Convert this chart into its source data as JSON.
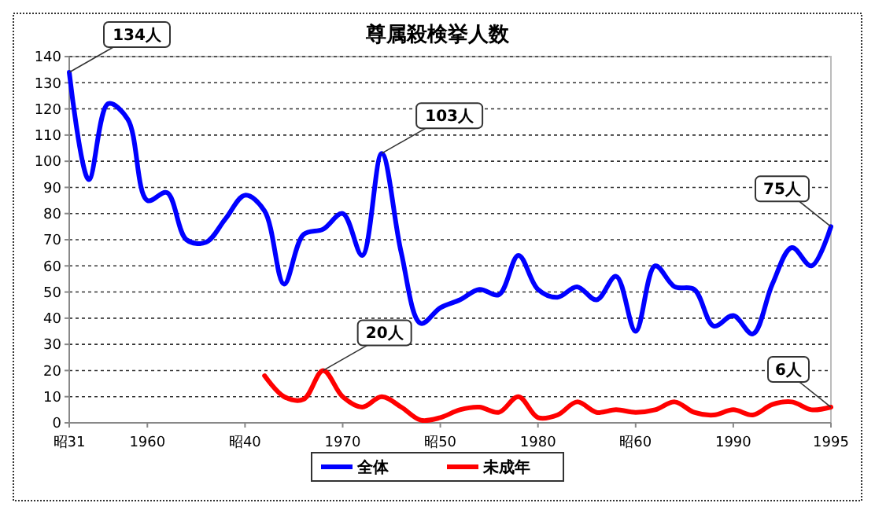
{
  "chart_data": {
    "type": "line",
    "title": "尊属殺検挙人数",
    "xlim": [
      1956,
      1995
    ],
    "xticks": [
      {
        "value": 1956,
        "label": "昭31"
      },
      1960,
      {
        "value": 1965,
        "label": "昭40"
      },
      1970,
      {
        "value": 1975,
        "label": "昭50"
      },
      1980,
      {
        "value": 1985,
        "label": "昭60"
      },
      1990,
      1995
    ],
    "ylim": [
      0,
      140
    ],
    "yticks": [
      0,
      10,
      20,
      30,
      40,
      50,
      60,
      70,
      80,
      90,
      100,
      110,
      120,
      130,
      140
    ],
    "grid": "y",
    "legend": "bottom",
    "line_style": "solid",
    "series": [
      {
        "name": "全体",
        "color": "#0000ff",
        "x": [
          1956,
          1957,
          1958,
          1959,
          1960,
          1961,
          1962,
          1963,
          1964,
          1965,
          1966,
          1967,
          1968,
          1969,
          1970,
          1971,
          1972,
          1973,
          1974,
          1975,
          1976,
          1977,
          1978,
          1979,
          1980,
          1981,
          1982,
          1983,
          1984,
          1985,
          1986,
          1987,
          1988,
          1989,
          1990,
          1991,
          1992,
          1993,
          1994,
          1995
        ],
        "values": [
          134,
          93,
          122,
          116,
          85,
          88,
          70,
          69,
          78,
          87,
          81,
          53,
          72,
          74,
          80,
          64,
          103,
          65,
          38,
          44,
          47,
          51,
          49,
          64,
          51,
          48,
          52,
          47,
          56,
          35,
          60,
          52,
          51,
          37,
          41,
          34,
          53,
          67,
          60,
          75
        ]
      },
      {
        "name": "未成年",
        "color": "#ff0000",
        "x": [
          1966,
          1967,
          1968,
          1969,
          1970,
          1971,
          1972,
          1973,
          1974,
          1975,
          1976,
          1977,
          1978,
          1979,
          1980,
          1981,
          1982,
          1983,
          1984,
          1985,
          1986,
          1987,
          1988,
          1989,
          1990,
          1991,
          1992,
          1993,
          1994,
          1995
        ],
        "values": [
          18,
          10,
          9,
          20,
          10,
          6,
          10,
          6,
          1,
          2,
          5,
          6,
          4,
          10,
          2,
          3,
          8,
          4,
          5,
          4,
          5,
          8,
          4,
          3,
          5,
          3,
          7,
          8,
          5,
          6
        ]
      }
    ],
    "annotations": [
      {
        "text": "134人",
        "x": 1956,
        "y": 134
      },
      {
        "text": "103人",
        "x": 1972,
        "y": 103
      },
      {
        "text": "75人",
        "x": 1995,
        "y": 75
      },
      {
        "text": "20人",
        "x": 1969,
        "y": 20
      },
      {
        "text": "6人",
        "x": 1995,
        "y": 6
      }
    ]
  }
}
